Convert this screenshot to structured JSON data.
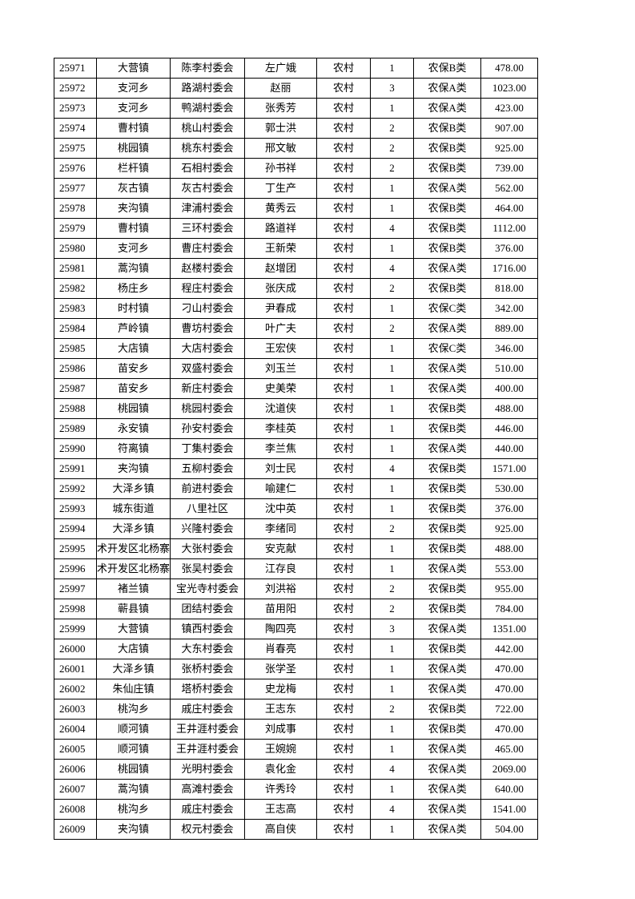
{
  "rows": [
    [
      "25971",
      "大营镇",
      "陈李村委会",
      "左广娥",
      "农村",
      "1",
      "农保B类",
      "478.00"
    ],
    [
      "25972",
      "支河乡",
      "路湖村委会",
      "赵丽",
      "农村",
      "3",
      "农保A类",
      "1023.00"
    ],
    [
      "25973",
      "支河乡",
      "鸭湖村委会",
      "张秀芳",
      "农村",
      "1",
      "农保A类",
      "423.00"
    ],
    [
      "25974",
      "曹村镇",
      "桃山村委会",
      "郭士洪",
      "农村",
      "2",
      "农保B类",
      "907.00"
    ],
    [
      "25975",
      "桃园镇",
      "桃东村委会",
      "邢文敏",
      "农村",
      "2",
      "农保B类",
      "925.00"
    ],
    [
      "25976",
      "栏杆镇",
      "石相村委会",
      "孙书祥",
      "农村",
      "2",
      "农保B类",
      "739.00"
    ],
    [
      "25977",
      "灰古镇",
      "灰古村委会",
      "丁生产",
      "农村",
      "1",
      "农保A类",
      "562.00"
    ],
    [
      "25978",
      "夹沟镇",
      "津浦村委会",
      "黄秀云",
      "农村",
      "1",
      "农保B类",
      "464.00"
    ],
    [
      "25979",
      "曹村镇",
      "三环村委会",
      "路道祥",
      "农村",
      "4",
      "农保B类",
      "1112.00"
    ],
    [
      "25980",
      "支河乡",
      "曹庄村委会",
      "王新荣",
      "农村",
      "1",
      "农保B类",
      "376.00"
    ],
    [
      "25981",
      "蒿沟镇",
      "赵楼村委会",
      "赵增团",
      "农村",
      "4",
      "农保A类",
      "1716.00"
    ],
    [
      "25982",
      "杨庄乡",
      "程庄村委会",
      "张庆成",
      "农村",
      "2",
      "农保B类",
      "818.00"
    ],
    [
      "25983",
      "时村镇",
      "刁山村委会",
      "尹春成",
      "农村",
      "1",
      "农保C类",
      "342.00"
    ],
    [
      "25984",
      "芦岭镇",
      "曹坊村委会",
      "叶广夫",
      "农村",
      "2",
      "农保A类",
      "889.00"
    ],
    [
      "25985",
      "大店镇",
      "大店村委会",
      "王宏侠",
      "农村",
      "1",
      "农保C类",
      "346.00"
    ],
    [
      "25986",
      "苗安乡",
      "双盛村委会",
      "刘玉兰",
      "农村",
      "1",
      "农保A类",
      "510.00"
    ],
    [
      "25987",
      "苗安乡",
      "新庄村委会",
      "史美荣",
      "农村",
      "1",
      "农保A类",
      "400.00"
    ],
    [
      "25988",
      "桃园镇",
      "桃园村委会",
      "沈道侠",
      "农村",
      "1",
      "农保B类",
      "488.00"
    ],
    [
      "25989",
      "永安镇",
      "孙安村委会",
      "李桂英",
      "农村",
      "1",
      "农保B类",
      "446.00"
    ],
    [
      "25990",
      "符离镇",
      "丁集村委会",
      "李兰焦",
      "农村",
      "1",
      "农保A类",
      "440.00"
    ],
    [
      "25991",
      "夹沟镇",
      "五柳村委会",
      "刘士民",
      "农村",
      "4",
      "农保B类",
      "1571.00"
    ],
    [
      "25992",
      "大泽乡镇",
      "前进村委会",
      "喻建仁",
      "农村",
      "1",
      "农保B类",
      "530.00"
    ],
    [
      "25993",
      "城东街道",
      "八里社区",
      "沈中英",
      "农村",
      "1",
      "农保B类",
      "376.00"
    ],
    [
      "25994",
      "大泽乡镇",
      "兴隆村委会",
      "李绪同",
      "农村",
      "2",
      "农保B类",
      "925.00"
    ],
    [
      "25995",
      "术开发区北杨寨",
      "大张村委会",
      "安克献",
      "农村",
      "1",
      "农保B类",
      "488.00"
    ],
    [
      "25996",
      "术开发区北杨寨",
      "张吴村委会",
      "江存良",
      "农村",
      "1",
      "农保A类",
      "553.00"
    ],
    [
      "25997",
      "褚兰镇",
      "宝光寺村委会",
      "刘洪裕",
      "农村",
      "2",
      "农保B类",
      "955.00"
    ],
    [
      "25998",
      "蕲县镇",
      "团结村委会",
      "苗用阳",
      "农村",
      "2",
      "农保B类",
      "784.00"
    ],
    [
      "25999",
      "大营镇",
      "镇西村委会",
      "陶四亮",
      "农村",
      "3",
      "农保A类",
      "1351.00"
    ],
    [
      "26000",
      "大店镇",
      "大东村委会",
      "肖春亮",
      "农村",
      "1",
      "农保B类",
      "442.00"
    ],
    [
      "26001",
      "大泽乡镇",
      "张桥村委会",
      "张学圣",
      "农村",
      "1",
      "农保A类",
      "470.00"
    ],
    [
      "26002",
      "朱仙庄镇",
      "塔桥村委会",
      "史龙梅",
      "农村",
      "1",
      "农保A类",
      "470.00"
    ],
    [
      "26003",
      "桃沟乡",
      "戚庄村委会",
      "王志东",
      "农村",
      "2",
      "农保B类",
      "722.00"
    ],
    [
      "26004",
      "顺河镇",
      "王井涯村委会",
      "刘成事",
      "农村",
      "1",
      "农保B类",
      "470.00"
    ],
    [
      "26005",
      "顺河镇",
      "王井涯村委会",
      "王婉婉",
      "农村",
      "1",
      "农保A类",
      "465.00"
    ],
    [
      "26006",
      "桃园镇",
      "光明村委会",
      "袁化金",
      "农村",
      "4",
      "农保A类",
      "2069.00"
    ],
    [
      "26007",
      "蒿沟镇",
      "高滩村委会",
      "许秀玲",
      "农村",
      "1",
      "农保A类",
      "640.00"
    ],
    [
      "26008",
      "桃沟乡",
      "戚庄村委会",
      "王志高",
      "农村",
      "4",
      "农保A类",
      "1541.00"
    ],
    [
      "26009",
      "夹沟镇",
      "权元村委会",
      "高自侠",
      "农村",
      "1",
      "农保A类",
      "504.00"
    ]
  ]
}
